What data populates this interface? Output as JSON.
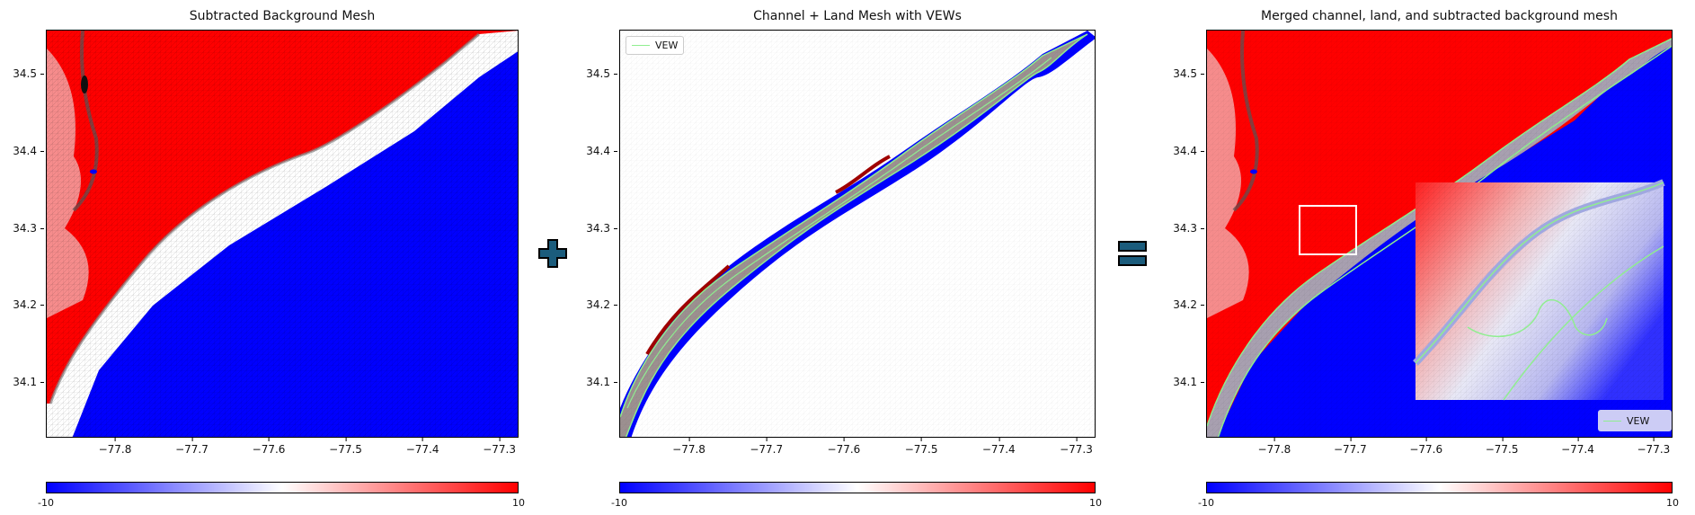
{
  "colors": {
    "land": "#ff0000",
    "ocean": "#0000ff",
    "vew": "#90ee90",
    "operator": "#1b5c7c"
  },
  "axis_ranges": {
    "lon": [
      -77.89,
      -77.275
    ],
    "lat": [
      34.028,
      34.557
    ]
  },
  "x_ticks": [
    {
      "value": -77.8,
      "label": "−77.8"
    },
    {
      "value": -77.7,
      "label": "−77.7"
    },
    {
      "value": -77.6,
      "label": "−77.6"
    },
    {
      "value": -77.5,
      "label": "−77.5"
    },
    {
      "value": -77.4,
      "label": "−77.4"
    },
    {
      "value": -77.3,
      "label": "−77.3"
    }
  ],
  "y_ticks": [
    {
      "value": 34.5,
      "label": "34.5"
    },
    {
      "value": 34.4,
      "label": "34.4"
    },
    {
      "value": 34.3,
      "label": "34.3"
    },
    {
      "value": 34.2,
      "label": "34.2"
    },
    {
      "value": 34.1,
      "label": "34.1"
    }
  ],
  "panels": [
    {
      "title": "Subtracted Background Mesh",
      "colorbar": {
        "min": "-10",
        "max": "10"
      }
    },
    {
      "title": "Channel + Land Mesh with VEWs",
      "legend": "VEW",
      "colorbar": {
        "min": "-10",
        "max": "10"
      }
    },
    {
      "title": "Merged channel, land, and subtracted background mesh",
      "legend": "VEW",
      "colorbar": {
        "min": "-10",
        "max": "10"
      }
    }
  ],
  "operators": {
    "plus": "plus-icon",
    "equals": "equals-icon"
  }
}
